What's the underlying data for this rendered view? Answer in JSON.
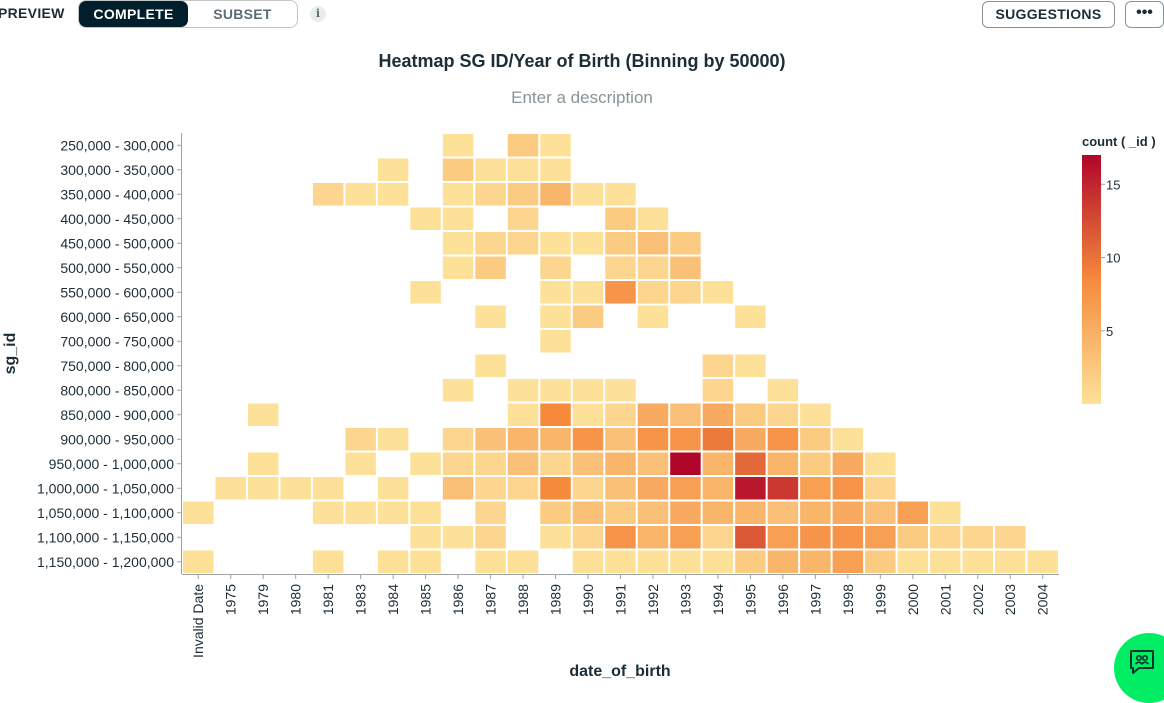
{
  "toolbar": {
    "preview_label": "PREVIEW",
    "complete_label": "COMPLETE",
    "subset_label": "SUBSET",
    "info_icon": "i",
    "suggestions_label": "SUGGESTIONS",
    "more_label": "•••"
  },
  "chart_header": {
    "title": "Heatmap SG ID/Year of Birth (Binning by 50000)",
    "description_placeholder": "Enter a description"
  },
  "chart_data": {
    "type": "heatmap",
    "xlabel": "date_of_birth",
    "ylabel": "sg_id",
    "x": [
      "Invalid Date",
      "1975",
      "1979",
      "1980",
      "1981",
      "1983",
      "1984",
      "1985",
      "1986",
      "1987",
      "1988",
      "1989",
      "1990",
      "1991",
      "1992",
      "1993",
      "1994",
      "1995",
      "1996",
      "1997",
      "1998",
      "1999",
      "2000",
      "2001",
      "2002",
      "2003",
      "2004"
    ],
    "y": [
      "250,000 - 300,000",
      "300,000 - 350,000",
      "350,000 - 400,000",
      "400,000 - 450,000",
      "450,000 - 500,000",
      "500,000 - 550,000",
      "550,000 - 600,000",
      "600,000 - 650,000",
      "700,000 - 750,000",
      "750,000 - 800,000",
      "800,000 - 850,000",
      "850,000 - 900,000",
      "900,000 - 950,000",
      "950,000 - 1,000,000",
      "1,000,000 - 1,050,000",
      "1,050,000 - 1,100,000",
      "1,100,000 - 1,150,000",
      "1,150,000 - 1,200,000"
    ],
    "values": [
      [
        0,
        0,
        0,
        0,
        0,
        0,
        0,
        0,
        1,
        0,
        3,
        1,
        0,
        0,
        0,
        0,
        0,
        0,
        0,
        0,
        0,
        0,
        0,
        0,
        0,
        0,
        0
      ],
      [
        0,
        0,
        0,
        0,
        0,
        0,
        1,
        0,
        3,
        1,
        1,
        1,
        0,
        0,
        0,
        0,
        0,
        0,
        0,
        0,
        0,
        0,
        0,
        0,
        0,
        0,
        0
      ],
      [
        0,
        0,
        0,
        0,
        2,
        1,
        1,
        0,
        1,
        2,
        3,
        5,
        1,
        1,
        0,
        0,
        0,
        0,
        0,
        0,
        0,
        0,
        0,
        0,
        0,
        0,
        0
      ],
      [
        0,
        0,
        0,
        0,
        0,
        0,
        0,
        1,
        1,
        0,
        2,
        0,
        0,
        3,
        1,
        0,
        0,
        0,
        0,
        0,
        0,
        0,
        0,
        0,
        0,
        0,
        0
      ],
      [
        0,
        0,
        0,
        0,
        0,
        0,
        0,
        0,
        1,
        2,
        2,
        1,
        1,
        3,
        4,
        3,
        0,
        0,
        0,
        0,
        0,
        0,
        0,
        0,
        0,
        0,
        0
      ],
      [
        0,
        0,
        0,
        0,
        0,
        0,
        0,
        0,
        1,
        3,
        0,
        2,
        0,
        2,
        2,
        4,
        0,
        0,
        0,
        0,
        0,
        0,
        0,
        0,
        0,
        0,
        0
      ],
      [
        0,
        0,
        0,
        0,
        0,
        0,
        0,
        1,
        0,
        0,
        0,
        1,
        1,
        8,
        2,
        2,
        1,
        0,
        0,
        0,
        0,
        0,
        0,
        0,
        0,
        0,
        0
      ],
      [
        0,
        0,
        0,
        0,
        0,
        0,
        0,
        0,
        0,
        1,
        0,
        1,
        3,
        0,
        1,
        0,
        0,
        1,
        0,
        0,
        0,
        0,
        0,
        0,
        0,
        0,
        0
      ],
      [
        0,
        0,
        0,
        0,
        0,
        0,
        0,
        0,
        0,
        0,
        0,
        1,
        0,
        0,
        0,
        0,
        0,
        0,
        0,
        0,
        0,
        0,
        0,
        0,
        0,
        0,
        0
      ],
      [
        0,
        0,
        0,
        0,
        0,
        0,
        0,
        0,
        0,
        1,
        0,
        0,
        0,
        0,
        0,
        0,
        2,
        1,
        0,
        0,
        0,
        0,
        0,
        0,
        0,
        0,
        0
      ],
      [
        0,
        0,
        0,
        0,
        0,
        0,
        0,
        0,
        1,
        0,
        1,
        1,
        1,
        1,
        0,
        0,
        2,
        0,
        1,
        0,
        0,
        0,
        0,
        0,
        0,
        0,
        0
      ],
      [
        0,
        0,
        1,
        0,
        0,
        0,
        0,
        0,
        0,
        0,
        1,
        9,
        1,
        2,
        6,
        4,
        6,
        3,
        2,
        1,
        0,
        0,
        0,
        0,
        0,
        0,
        0
      ],
      [
        0,
        0,
        0,
        0,
        0,
        2,
        1,
        0,
        2,
        4,
        5,
        5,
        8,
        4,
        8,
        8,
        10,
        6,
        8,
        3,
        1,
        0,
        0,
        0,
        0,
        0,
        0
      ],
      [
        0,
        0,
        1,
        0,
        0,
        1,
        0,
        1,
        2,
        2,
        4,
        2,
        4,
        5,
        4,
        17,
        5,
        11,
        5,
        3,
        6,
        1,
        0,
        0,
        0,
        0,
        0
      ],
      [
        0,
        1,
        1,
        1,
        1,
        0,
        1,
        0,
        4,
        2,
        2,
        9,
        2,
        4,
        6,
        7,
        5,
        16,
        14,
        7,
        8,
        2,
        0,
        0,
        0,
        0,
        0
      ],
      [
        1,
        0,
        0,
        0,
        1,
        1,
        1,
        1,
        0,
        2,
        0,
        3,
        4,
        3,
        4,
        6,
        5,
        5,
        4,
        5,
        6,
        4,
        7,
        1,
        0,
        0,
        0
      ],
      [
        0,
        0,
        0,
        0,
        0,
        0,
        0,
        1,
        1,
        2,
        0,
        1,
        2,
        8,
        5,
        7,
        2,
        12,
        7,
        8,
        8,
        7,
        3,
        2,
        2,
        2,
        0
      ],
      [
        1,
        0,
        0,
        0,
        1,
        0,
        1,
        1,
        0,
        1,
        1,
        0,
        1,
        1,
        1,
        1,
        1,
        3,
        5,
        5,
        7,
        3,
        1,
        1,
        1,
        1,
        1
      ]
    ],
    "colorbar": {
      "title": "count ( _id )",
      "min": 0,
      "max": 17,
      "ticks": [
        "5",
        "10",
        "15"
      ],
      "low_color": "#fde199",
      "mid_color": "#f58a3d",
      "high_color": "#b0062a"
    }
  }
}
